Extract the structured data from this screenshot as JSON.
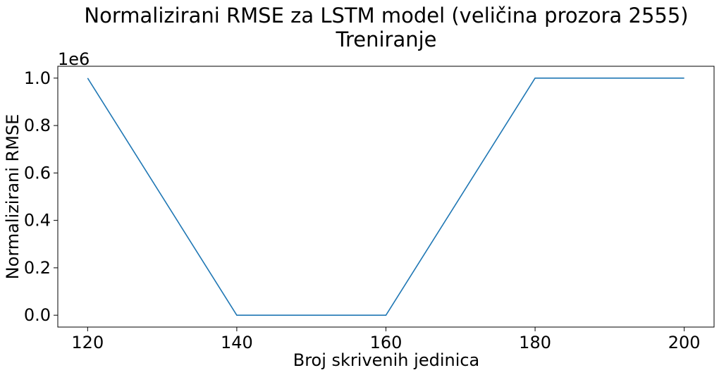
{
  "chart_data": {
    "type": "line",
    "title": "Normalizirani RMSE za LSTM model (veličina prozora 2555)",
    "subtitle": "Treniranje",
    "xlabel": "Broj skrivenih jedinica",
    "ylabel": "Normalizirani RMSE",
    "y_offset_label": "1e6",
    "x": [
      120,
      140,
      160,
      180,
      200
    ],
    "series": [
      {
        "values": [
          1000000,
          0,
          0,
          1000000,
          1000000
        ],
        "color": "#1f77b4"
      }
    ],
    "xlim": [
      116,
      204
    ],
    "ylim": [
      -50000,
      1050000
    ],
    "x_ticks": [
      120,
      140,
      160,
      180,
      200
    ],
    "x_tick_labels": [
      "120",
      "140",
      "160",
      "180",
      "200"
    ],
    "y_ticks": [
      0,
      200000,
      400000,
      600000,
      800000,
      1000000
    ],
    "y_tick_labels": [
      "0.0",
      "0.2",
      "0.4",
      "0.6",
      "0.8",
      "1.0"
    ],
    "grid": false,
    "legend": "none"
  }
}
